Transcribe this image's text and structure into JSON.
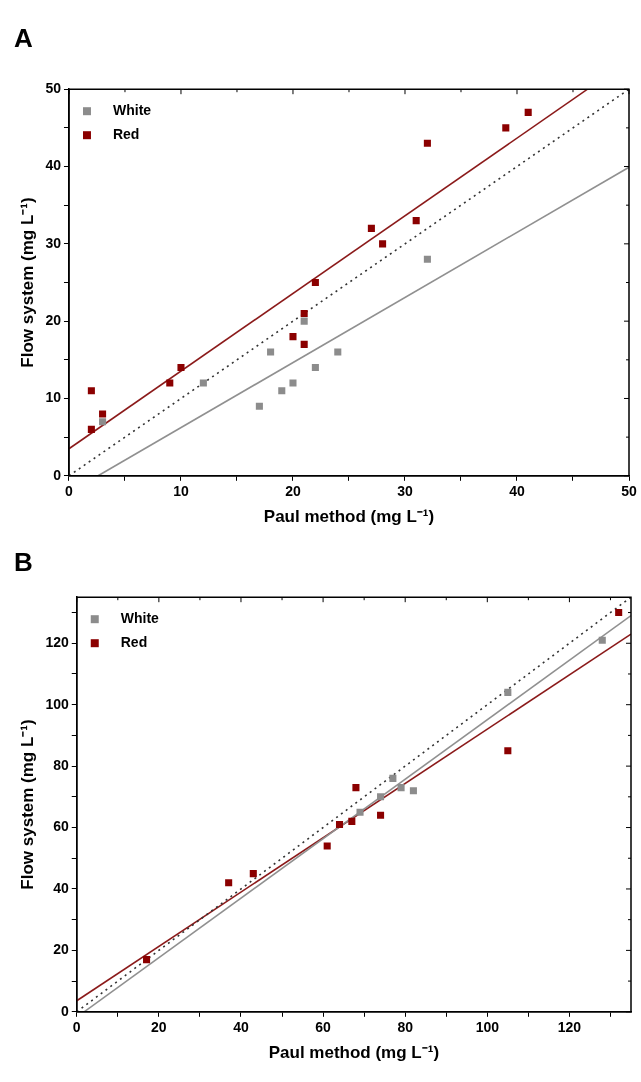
{
  "chart_data": [
    {
      "type": "scatter",
      "title": "A",
      "xlabel": "Paul method (mg L⁻¹)",
      "ylabel": "Flow system (mg L⁻¹)",
      "xlim": [
        0,
        50
      ],
      "ylim": [
        0,
        50
      ],
      "xticks": [
        0,
        {
          "value": 5,
          "label": null
        },
        10,
        {
          "value": 15,
          "label": null
        },
        20,
        {
          "value": 25,
          "label": null
        },
        30,
        {
          "value": 35,
          "label": null
        },
        40,
        {
          "value": 45,
          "label": null
        },
        50
      ],
      "yticks": [
        0,
        {
          "value": 5,
          "label": null
        },
        10,
        {
          "value": 15,
          "label": null
        },
        20,
        {
          "value": 25,
          "label": null
        },
        30,
        {
          "value": 35,
          "label": null
        },
        40,
        {
          "value": 45,
          "label": null
        },
        50
      ],
      "grid": false,
      "legend": "top left",
      "series": [
        {
          "type": "line",
          "marker": "none",
          "color": "#333333",
          "line_style": "dotted",
          "x": [
            0,
            50
          ],
          "values": [
            0,
            50
          ]
        },
        {
          "type": "line",
          "marker": "none",
          "color": "#909090",
          "line_style": "solid",
          "x": [
            2.6,
            50
          ],
          "values": [
            0,
            39.9
          ]
        },
        {
          "type": "line",
          "marker": "none",
          "color": "#8b1a1a",
          "line_style": "solid",
          "x": [
            0,
            46.3
          ],
          "values": [
            3.5,
            50
          ]
        },
        {
          "name": "White",
          "marker": "square",
          "color": "#8c8c8c",
          "x": [
            3,
            12,
            17,
            18,
            19,
            20,
            21,
            22,
            24,
            32
          ],
          "values": [
            7,
            12,
            9,
            16,
            11,
            12,
            20,
            14,
            16,
            28
          ]
        },
        {
          "name": "Red",
          "marker": "square",
          "color": "#8b0000",
          "x": [
            2,
            2,
            3,
            9,
            10,
            20,
            21,
            21,
            22,
            27,
            28,
            31,
            32,
            39,
            41
          ],
          "values": [
            11,
            6,
            8,
            12,
            14,
            18,
            21,
            17,
            25,
            32,
            30,
            33,
            43,
            45,
            47
          ]
        }
      ]
    },
    {
      "type": "scatter",
      "title": "B",
      "xlabel": "Paul method (mg L⁻¹)",
      "ylabel": "Flow system (mg L⁻¹)",
      "xlim": [
        0,
        135
      ],
      "ylim": [
        0,
        135
      ],
      "xticks": [
        0,
        {
          "value": 10,
          "label": null
        },
        20,
        {
          "value": 30,
          "label": null
        },
        40,
        {
          "value": 50,
          "label": null
        },
        60,
        {
          "value": 70,
          "label": null
        },
        80,
        {
          "value": 90,
          "label": null
        },
        100,
        {
          "value": 110,
          "label": null
        },
        120,
        {
          "value": 130,
          "label": null
        }
      ],
      "yticks": [
        0,
        {
          "value": 10,
          "label": null
        },
        20,
        {
          "value": 30,
          "label": null
        },
        40,
        {
          "value": 50,
          "label": null
        },
        60,
        {
          "value": 70,
          "label": null
        },
        80,
        {
          "value": 90,
          "label": null
        },
        100,
        {
          "value": 110,
          "label": null
        },
        120,
        {
          "value": 130,
          "label": null
        }
      ],
      "grid": false,
      "legend": "top left",
      "series": [
        {
          "type": "line",
          "marker": "none",
          "color": "#333333",
          "line_style": "dotted",
          "x": [
            0,
            135
          ],
          "values": [
            0,
            135
          ]
        },
        {
          "type": "line",
          "marker": "none",
          "color": "#909090",
          "line_style": "solid",
          "x": [
            1.8,
            135
          ],
          "values": [
            0,
            129
          ]
        },
        {
          "type": "line",
          "marker": "none",
          "color": "#8b1a1a",
          "line_style": "solid",
          "x": [
            0,
            135
          ],
          "values": [
            3.6,
            123
          ]
        },
        {
          "name": "White",
          "marker": "square",
          "color": "#8c8c8c",
          "x": [
            69,
            74,
            77,
            79,
            82,
            105,
            128
          ],
          "values": [
            65,
            70,
            76,
            73,
            72,
            104,
            121
          ]
        },
        {
          "name": "Red",
          "marker": "square",
          "color": "#8b0000",
          "x": [
            17,
            37,
            43,
            61,
            64,
            67,
            68,
            74,
            105,
            132
          ],
          "values": [
            17,
            42,
            45,
            54,
            61,
            62,
            73,
            64,
            85,
            130
          ]
        }
      ]
    }
  ]
}
